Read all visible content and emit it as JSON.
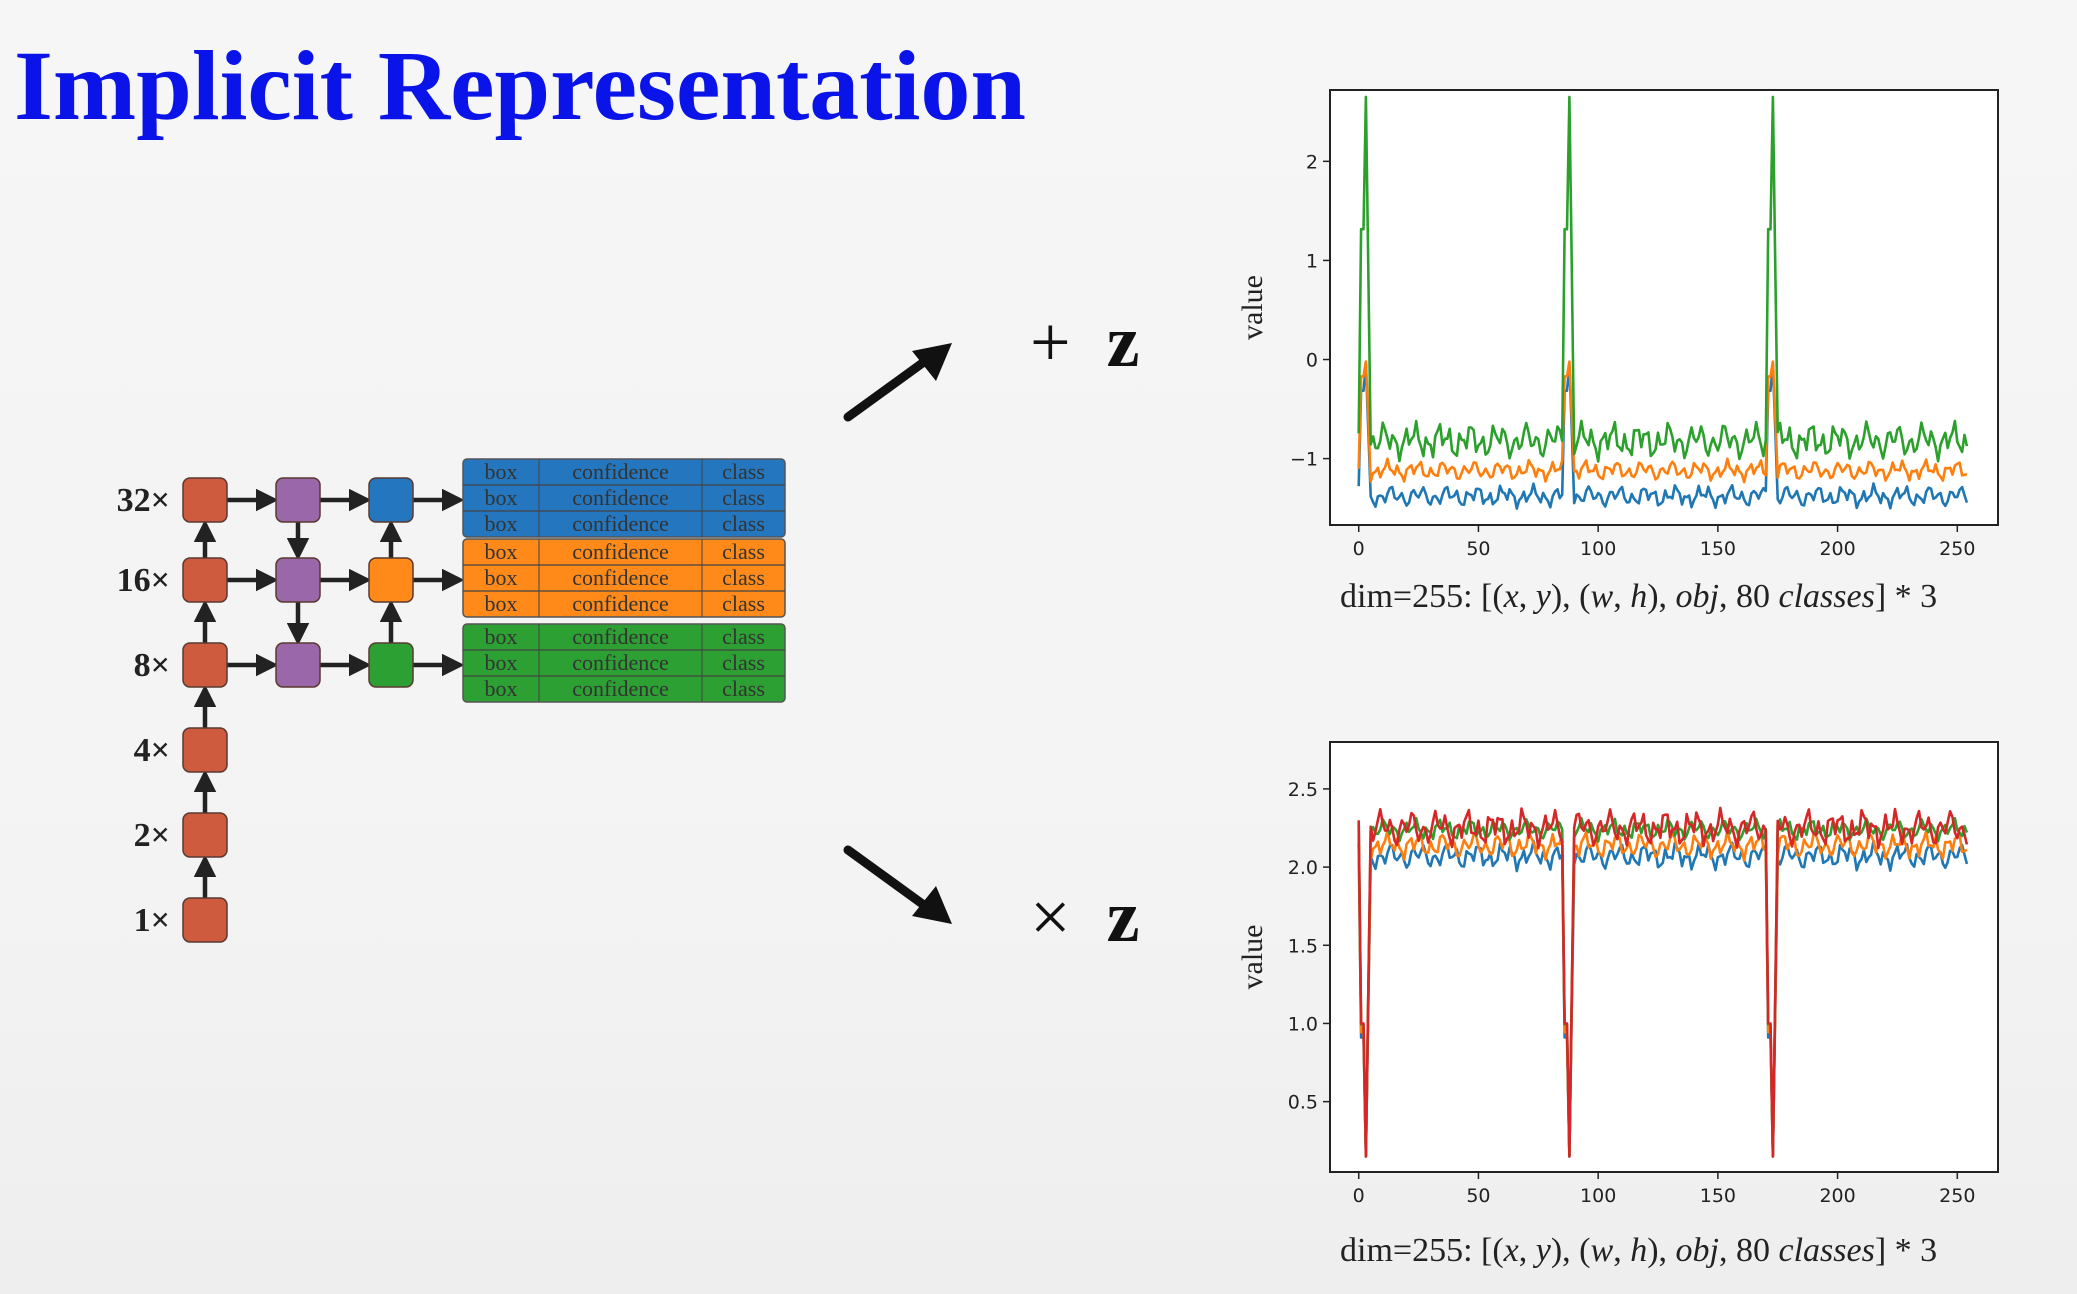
{
  "title": "Implicit Representation",
  "fpn": {
    "scales": [
      "32×",
      "16×",
      "8×",
      "4×",
      "2×",
      "1×"
    ],
    "head_cells": [
      "box",
      "confidence",
      "class"
    ],
    "colors": {
      "backbone": "#cf5b3e",
      "neck": "#9a67a8",
      "head_32": "#2476bf",
      "head_16": "#ff8a1a",
      "head_8": "#2ca032"
    }
  },
  "ops": {
    "add": {
      "symbol": "+",
      "var": "z"
    },
    "mul": {
      "symbol": "×",
      "var": "z"
    }
  },
  "caption": {
    "prefix": "dim=255: [(",
    "x": "x",
    "s1": ", ",
    "y": "y",
    "s2": "), (",
    "w": "w",
    "s3": ", ",
    "h": "h",
    "s4": "), ",
    "obj": "obj",
    "s5": ", 80 ",
    "classes": "classes",
    "suffix": "] * 3"
  },
  "chart_data": [
    {
      "type": "line",
      "ylabel": "value",
      "xlim": [
        -12,
        267
      ],
      "ylim": [
        -1.67,
        2.72
      ],
      "xticks": [
        0,
        50,
        100,
        150,
        200,
        250
      ],
      "yticks": [
        -1,
        0,
        1,
        2
      ],
      "ytick_labels": [
        "−1",
        "0",
        "1",
        "2"
      ],
      "series": [
        {
          "color": "#1f77b4",
          "peak": -0.05,
          "base": -1.38,
          "amp": 0.13,
          "drift": 0.0
        },
        {
          "color": "#ff7f0e",
          "peak": -0.02,
          "base": -1.12,
          "amp": 0.12,
          "drift": 0.0
        },
        {
          "color": "#2ca02c",
          "peak": 2.65,
          "base": -0.82,
          "amp": 0.22,
          "drift": 0.0
        }
      ]
    },
    {
      "type": "line",
      "ylabel": "value",
      "xlim": [
        -12,
        267
      ],
      "ylim": [
        0.05,
        2.8
      ],
      "xticks": [
        0,
        50,
        100,
        150,
        200,
        250
      ],
      "yticks": [
        0.5,
        1.0,
        1.5,
        2.0,
        2.5
      ],
      "ytick_labels": [
        "0.5",
        "1.0",
        "1.5",
        "2.0",
        "2.5"
      ],
      "series": [
        {
          "color": "#1f77b4",
          "peak": 0.15,
          "base": 2.07,
          "amp": 0.1,
          "drift": 0.0
        },
        {
          "color": "#ff7f0e",
          "peak": 0.15,
          "base": 2.14,
          "amp": 0.1,
          "drift": 0.0
        },
        {
          "color": "#2ca02c",
          "peak": 0.15,
          "base": 2.24,
          "amp": 0.08,
          "drift": 0.0
        },
        {
          "color": "#d62728",
          "peak": 0.15,
          "base": 2.25,
          "amp": 0.14,
          "drift": 0.0
        }
      ]
    }
  ]
}
